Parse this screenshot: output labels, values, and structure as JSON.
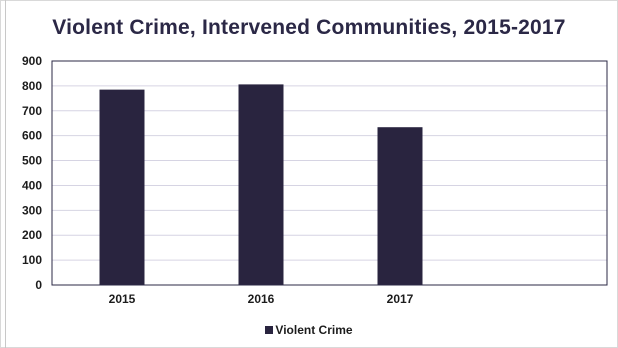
{
  "chart_data": {
    "type": "bar",
    "title": "Violent Crime, Intervened Communities, 2015-2017",
    "categories": [
      "2015",
      "2016",
      "2017"
    ],
    "series": [
      {
        "name": "Violent Crime",
        "values": [
          785,
          806,
          634
        ],
        "color": "#29243f"
      }
    ],
    "ylim": [
      0,
      900
    ],
    "yticks": [
      0,
      100,
      200,
      300,
      400,
      500,
      600,
      700,
      800,
      900
    ],
    "grid": true,
    "legend_position": "bottom"
  }
}
